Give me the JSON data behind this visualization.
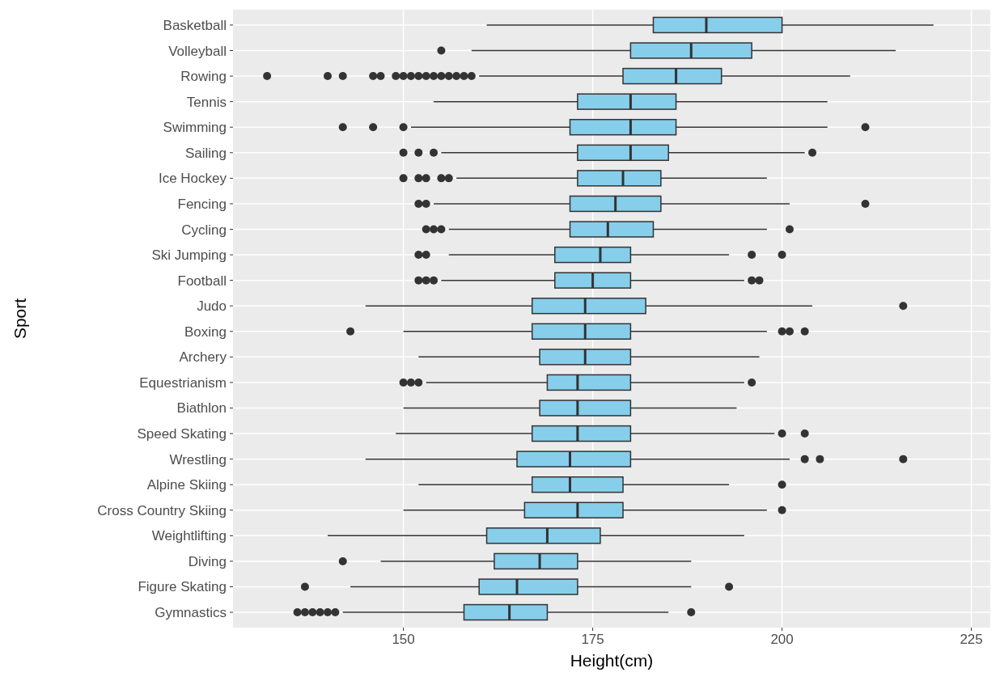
{
  "chart_data": {
    "type": "box",
    "orientation": "horizontal",
    "xlabel": "Height(cm)",
    "ylabel": "Sport",
    "grid": true,
    "color": "#87ceeb",
    "xlim": [
      127.5,
      227.5
    ],
    "xticks": [
      150,
      175,
      200,
      225
    ],
    "categories": [
      "Basketball",
      "Volleyball",
      "Rowing",
      "Tennis",
      "Swimming",
      "Sailing",
      "Ice Hockey",
      "Fencing",
      "Cycling",
      "Ski Jumping",
      "Football",
      "Judo",
      "Boxing",
      "Archery",
      "Equestrianism",
      "Biathlon",
      "Speed Skating",
      "Wrestling",
      "Alpine Skiing",
      "Cross Country Skiing",
      "Weightlifting",
      "Diving",
      "Figure Skating",
      "Gymnastics"
    ],
    "boxes": [
      {
        "low": 161,
        "q1": 183,
        "median": 190,
        "q3": 200,
        "high": 220
      },
      {
        "low": 159,
        "q1": 180,
        "median": 188,
        "q3": 196,
        "high": 215,
        "outliers": [
          155
        ]
      },
      {
        "low": 160,
        "q1": 179,
        "median": 186,
        "q3": 192,
        "high": 209,
        "outliers": [
          132,
          140,
          142,
          146,
          147,
          149,
          150,
          151,
          152,
          153,
          154,
          155,
          156,
          157,
          158,
          159
        ]
      },
      {
        "low": 154,
        "q1": 173,
        "median": 180,
        "q3": 186,
        "high": 206
      },
      {
        "low": 151,
        "q1": 172,
        "median": 180,
        "q3": 186,
        "high": 206,
        "outliers": [
          142,
          146,
          150,
          211
        ]
      },
      {
        "low": 155,
        "q1": 173,
        "median": 180,
        "q3": 185,
        "high": 203,
        "outliers": [
          150,
          152,
          154,
          204
        ]
      },
      {
        "low": 157,
        "q1": 173,
        "median": 179,
        "q3": 184,
        "high": 198,
        "outliers": [
          150,
          152,
          153,
          155,
          156
        ]
      },
      {
        "low": 154,
        "q1": 172,
        "median": 178,
        "q3": 184,
        "high": 201,
        "outliers": [
          152,
          153,
          211
        ]
      },
      {
        "low": 156,
        "q1": 172,
        "median": 177,
        "q3": 183,
        "high": 198,
        "outliers": [
          153,
          154,
          155,
          201
        ]
      },
      {
        "low": 156,
        "q1": 170,
        "median": 176,
        "q3": 180,
        "high": 193,
        "outliers": [
          152,
          153,
          196,
          200
        ]
      },
      {
        "low": 155,
        "q1": 170,
        "median": 175,
        "q3": 180,
        "high": 195,
        "outliers": [
          152,
          153,
          154,
          196,
          197
        ]
      },
      {
        "low": 145,
        "q1": 167,
        "median": 174,
        "q3": 182,
        "high": 204,
        "outliers": [
          216
        ]
      },
      {
        "low": 150,
        "q1": 167,
        "median": 174,
        "q3": 180,
        "high": 198,
        "outliers": [
          143,
          200,
          201,
          203
        ]
      },
      {
        "low": 152,
        "q1": 168,
        "median": 174,
        "q3": 180,
        "high": 197
      },
      {
        "low": 153,
        "q1": 169,
        "median": 173,
        "q3": 180,
        "high": 195,
        "outliers": [
          150,
          151,
          152,
          196
        ]
      },
      {
        "low": 150,
        "q1": 168,
        "median": 173,
        "q3": 180,
        "high": 194
      },
      {
        "low": 149,
        "q1": 167,
        "median": 173,
        "q3": 180,
        "high": 199,
        "outliers": [
          200,
          203
        ]
      },
      {
        "low": 145,
        "q1": 165,
        "median": 172,
        "q3": 180,
        "high": 201,
        "outliers": [
          203,
          205,
          216
        ]
      },
      {
        "low": 152,
        "q1": 167,
        "median": 172,
        "q3": 179,
        "high": 193,
        "outliers": [
          200
        ]
      },
      {
        "low": 150,
        "q1": 166,
        "median": 173,
        "q3": 179,
        "high": 198,
        "outliers": [
          200
        ]
      },
      {
        "low": 140,
        "q1": 161,
        "median": 169,
        "q3": 176,
        "high": 195
      },
      {
        "low": 147,
        "q1": 162,
        "median": 168,
        "q3": 173,
        "high": 188,
        "outliers": [
          142
        ]
      },
      {
        "low": 143,
        "q1": 160,
        "median": 165,
        "q3": 173,
        "high": 188,
        "outliers": [
          137,
          193
        ]
      },
      {
        "low": 142,
        "q1": 158,
        "median": 164,
        "q3": 169,
        "high": 185,
        "outliers": [
          136,
          137,
          138,
          139,
          140,
          141,
          188
        ]
      }
    ]
  }
}
